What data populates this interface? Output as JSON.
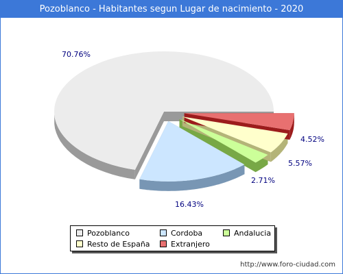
{
  "title": "Pozoblanco - Habitantes segun Lugar de nacimiento - 2020",
  "source_url": "http://www.foro-ciudad.com",
  "chart_data": {
    "type": "pie",
    "title": "Pozoblanco - Habitantes segun Lugar de nacimiento - 2020",
    "legend_position": "bottom",
    "slices": [
      {
        "name": "Pozoblanco",
        "value": 70.76,
        "label": "70.76%",
        "color": "#ececec",
        "side_color": "#9a9a9a"
      },
      {
        "name": "Cordoba",
        "value": 16.43,
        "label": "16.43%",
        "color": "#cce6ff",
        "side_color": "#7896b4"
      },
      {
        "name": "Andalucia",
        "value": 2.71,
        "label": "2.71%",
        "color": "#ccff99",
        "side_color": "#78a846"
      },
      {
        "name": "Resto de España",
        "value": 5.57,
        "label": "5.57%",
        "color": "#ffffcc",
        "side_color": "#b4b478"
      },
      {
        "name": "Extranjero",
        "value": 4.52,
        "label": "4.52%",
        "color": "#e87070",
        "side_color": "#9c1c1c"
      }
    ]
  }
}
